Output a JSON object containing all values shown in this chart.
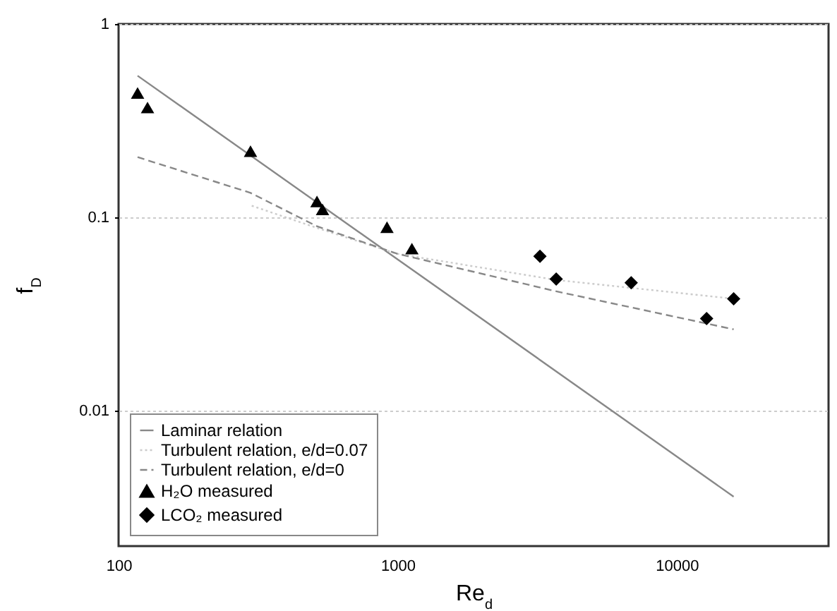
{
  "chart_data": {
    "type": "scatter",
    "xlabel": "Re$_{d}$",
    "ylabel": "f$_{D}$",
    "log": "xy",
    "xlim": [
      100,
      35000
    ],
    "ylim": [
      0.002,
      1
    ],
    "xticks": [
      100,
      1000,
      10000
    ],
    "yticks": [
      0.01,
      0.1,
      1
    ],
    "grid": "y",
    "legend": "bottom left",
    "series": [
      {
        "name": "Laminar relation",
        "type": "line",
        "color": "#888888",
        "line_style": "solid",
        "marker": "none",
        "x": [
          117,
          16000
        ],
        "values": [
          0.54,
          0.0036
        ]
      },
      {
        "name": "Turbulent relation, e/d=0.07",
        "type": "line",
        "color": "#cccccc",
        "line_style": "dotted",
        "marker": "none",
        "x": [
          300,
          530,
          990,
          3700,
          16000
        ],
        "values": [
          0.115,
          0.087,
          0.065,
          0.0475,
          0.038
        ]
      },
      {
        "name": "Turbulent relation, e/d=0",
        "type": "line",
        "color": "#888888",
        "line_style": "dashed",
        "marker": "none",
        "x": [
          117,
          297,
          514,
          993,
          3700,
          16000
        ],
        "values": [
          0.205,
          0.134,
          0.09,
          0.065,
          0.0415,
          0.0264
        ]
      },
      {
        "name": "H₂O measured",
        "type": "scatter",
        "color": "#000000",
        "marker": "triangle",
        "x": [
          117,
          127,
          297,
          514,
          538,
          916,
          1125
        ],
        "values": [
          0.44,
          0.37,
          0.22,
          0.121,
          0.11,
          0.089,
          0.069
        ]
      },
      {
        "name": "LCO₂ measured",
        "type": "scatter",
        "color": "#000000",
        "marker": "diamond",
        "x": [
          3236,
          3700,
          6870,
          12800,
          16000
        ],
        "values": [
          0.063,
          0.048,
          0.046,
          0.03,
          0.038
        ]
      }
    ]
  }
}
